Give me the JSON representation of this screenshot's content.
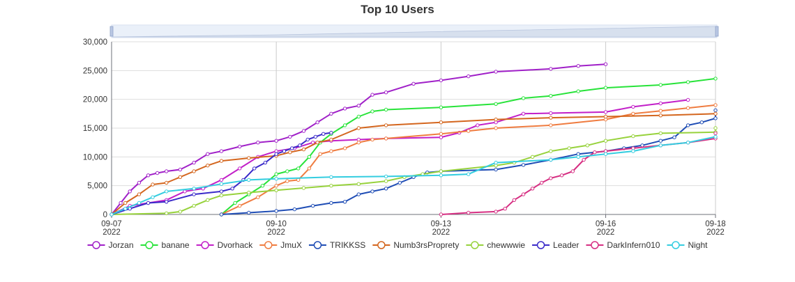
{
  "chart_data": {
    "type": "line",
    "title": "Top 10 Users",
    "x_axis": {
      "type": "date",
      "range": [
        "2022-09-07",
        "2022-09-18"
      ],
      "ticks": [
        {
          "date": "2022-09-07",
          "label": "09-07",
          "sub": "2022"
        },
        {
          "date": "2022-09-10",
          "label": "09-10",
          "sub": "2022"
        },
        {
          "date": "2022-09-13",
          "label": "09-13",
          "sub": "2022"
        },
        {
          "date": "2022-09-16",
          "label": "09-16",
          "sub": "2022"
        },
        {
          "date": "2022-09-18",
          "label": "09-18",
          "sub": "2022"
        }
      ]
    },
    "y_axis": {
      "range": [
        0,
        30000
      ],
      "ticks": [
        0,
        5000,
        10000,
        15000,
        20000,
        25000,
        30000
      ],
      "tick_labels": [
        "0",
        "5,000",
        "10,000",
        "15,000",
        "20,000",
        "25,000",
        "30,000"
      ]
    },
    "grid": true,
    "legend": "bottom",
    "data_zoom": true,
    "series": [
      {
        "name": "Jorzan",
        "color": "#a020c8",
        "points": [
          [
            "2022-09-07",
            0
          ],
          [
            "2022-09-07",
            2000
          ],
          [
            "2022-09-07",
            4000
          ],
          [
            "2022-09-07",
            5500
          ],
          [
            "2022-09-07",
            6800
          ],
          [
            "2022-09-07",
            7200
          ],
          [
            "2022-09-08",
            7500
          ],
          [
            "2022-09-08",
            7800
          ],
          [
            "2022-09-08",
            9000
          ],
          [
            "2022-09-08",
            10500
          ],
          [
            "2022-09-09",
            11000
          ],
          [
            "2022-09-09",
            11800
          ],
          [
            "2022-09-09",
            12500
          ],
          [
            "2022-09-10",
            12800
          ],
          [
            "2022-09-10",
            13500
          ],
          [
            "2022-09-10",
            14500
          ],
          [
            "2022-09-10",
            16000
          ],
          [
            "2022-09-11",
            17500
          ],
          [
            "2022-09-11",
            18400
          ],
          [
            "2022-09-11",
            18900
          ],
          [
            "2022-09-11",
            20800
          ],
          [
            "2022-09-12",
            21200
          ],
          [
            "2022-09-12",
            22700
          ],
          [
            "2022-09-13",
            23300
          ],
          [
            "2022-09-13",
            24000
          ],
          [
            "2022-09-14",
            24800
          ],
          [
            "2022-09-15",
            25300
          ],
          [
            "2022-09-15",
            25800
          ],
          [
            "2022-09-16",
            26100
          ]
        ]
      },
      {
        "name": "banane",
        "color": "#27e339",
        "points": [
          [
            "2022-09-09",
            0
          ],
          [
            "2022-09-09",
            2000
          ],
          [
            "2022-09-09",
            3500
          ],
          [
            "2022-09-09",
            5000
          ],
          [
            "2022-09-10",
            7000
          ],
          [
            "2022-09-10",
            7500
          ],
          [
            "2022-09-10",
            8000
          ],
          [
            "2022-09-10",
            10000
          ],
          [
            "2022-09-10",
            12500
          ],
          [
            "2022-09-11",
            14000
          ],
          [
            "2022-09-11",
            15500
          ],
          [
            "2022-09-11",
            17000
          ],
          [
            "2022-09-11",
            17900
          ],
          [
            "2022-09-12",
            18200
          ],
          [
            "2022-09-13",
            18600
          ],
          [
            "2022-09-14",
            19200
          ],
          [
            "2022-09-14",
            20200
          ],
          [
            "2022-09-15",
            20600
          ],
          [
            "2022-09-15",
            21400
          ],
          [
            "2022-09-16",
            22000
          ],
          [
            "2022-09-17",
            22500
          ],
          [
            "2022-09-17",
            23000
          ],
          [
            "2022-09-18",
            23600
          ]
        ]
      },
      {
        "name": "Dvorhack",
        "color": "#c21fc8",
        "points": [
          [
            "2022-09-07",
            0
          ],
          [
            "2022-09-07",
            1500
          ],
          [
            "2022-09-07",
            2000
          ],
          [
            "2022-09-08",
            2500
          ],
          [
            "2022-09-08",
            4000
          ],
          [
            "2022-09-08",
            4500
          ],
          [
            "2022-09-09",
            6000
          ],
          [
            "2022-09-09",
            8000
          ],
          [
            "2022-09-09",
            10000
          ],
          [
            "2022-09-10",
            11000
          ],
          [
            "2022-09-10",
            11500
          ],
          [
            "2022-09-10",
            12500
          ],
          [
            "2022-09-11",
            12800
          ],
          [
            "2022-09-11",
            13000
          ],
          [
            "2022-09-12",
            13200
          ],
          [
            "2022-09-13",
            13400
          ],
          [
            "2022-09-13",
            14200
          ],
          [
            "2022-09-13",
            15500
          ],
          [
            "2022-09-14",
            16000
          ],
          [
            "2022-09-14",
            17500
          ],
          [
            "2022-09-15",
            17600
          ],
          [
            "2022-09-16",
            17800
          ],
          [
            "2022-09-16",
            18700
          ],
          [
            "2022-09-17",
            19300
          ],
          [
            "2022-09-17",
            19900
          ]
        ]
      },
      {
        "name": "JmuX",
        "color": "#ef7c40",
        "points": [
          [
            "2022-09-09",
            0
          ],
          [
            "2022-09-09",
            1500
          ],
          [
            "2022-09-09",
            3000
          ],
          [
            "2022-09-10",
            5000
          ],
          [
            "2022-09-10",
            5800
          ],
          [
            "2022-09-10",
            6000
          ],
          [
            "2022-09-10",
            8000
          ],
          [
            "2022-09-10",
            10500
          ],
          [
            "2022-09-11",
            11000
          ],
          [
            "2022-09-11",
            11500
          ],
          [
            "2022-09-11",
            12500
          ],
          [
            "2022-09-11",
            13000
          ],
          [
            "2022-09-12",
            13200
          ],
          [
            "2022-09-13",
            14000
          ],
          [
            "2022-09-13",
            14500
          ],
          [
            "2022-09-14",
            15000
          ],
          [
            "2022-09-15",
            15500
          ],
          [
            "2022-09-16",
            16500
          ],
          [
            "2022-09-16",
            17500
          ],
          [
            "2022-09-17",
            18000
          ],
          [
            "2022-09-17",
            18500
          ],
          [
            "2022-09-18",
            19000
          ]
        ]
      },
      {
        "name": "TRIKKSS",
        "color": "#1f4db5",
        "points": [
          [
            "2022-09-09",
            0
          ],
          [
            "2022-09-09",
            300
          ],
          [
            "2022-09-10",
            600
          ],
          [
            "2022-09-10",
            900
          ],
          [
            "2022-09-10",
            1500
          ],
          [
            "2022-09-11",
            2000
          ],
          [
            "2022-09-11",
            2200
          ],
          [
            "2022-09-11",
            3500
          ],
          [
            "2022-09-11",
            4000
          ],
          [
            "2022-09-12",
            4500
          ],
          [
            "2022-09-12",
            5500
          ],
          [
            "2022-09-12",
            6500
          ],
          [
            "2022-09-12",
            7300
          ],
          [
            "2022-09-13",
            7500
          ],
          [
            "2022-09-14",
            7800
          ],
          [
            "2022-09-14",
            8600
          ],
          [
            "2022-09-15",
            9500
          ],
          [
            "2022-09-15",
            10500
          ],
          [
            "2022-09-16",
            11000
          ],
          [
            "2022-09-16",
            11500
          ],
          [
            "2022-09-16",
            12000
          ],
          [
            "2022-09-17",
            12800
          ],
          [
            "2022-09-17",
            13400
          ],
          [
            "2022-09-17",
            15500
          ],
          [
            "2022-09-17",
            16000
          ],
          [
            "2022-09-18",
            16700
          ],
          [
            "2022-09-18",
            18100
          ]
        ]
      },
      {
        "name": "Numb3rsProprety",
        "color": "#d4661e",
        "points": [
          [
            "2022-09-07",
            0
          ],
          [
            "2022-09-07",
            2000
          ],
          [
            "2022-09-07",
            3500
          ],
          [
            "2022-09-07",
            5200
          ],
          [
            "2022-09-08",
            5500
          ],
          [
            "2022-09-08",
            6500
          ],
          [
            "2022-09-08",
            7500
          ],
          [
            "2022-09-08",
            8500
          ],
          [
            "2022-09-09",
            9300
          ],
          [
            "2022-09-09",
            9800
          ],
          [
            "2022-09-10",
            10200
          ],
          [
            "2022-09-10",
            10800
          ],
          [
            "2022-09-10",
            11300
          ],
          [
            "2022-09-10",
            12500
          ],
          [
            "2022-09-11",
            13000
          ],
          [
            "2022-09-11",
            15000
          ],
          [
            "2022-09-12",
            15500
          ],
          [
            "2022-09-13",
            16000
          ],
          [
            "2022-09-14",
            16500
          ],
          [
            "2022-09-15",
            16800
          ],
          [
            "2022-09-16",
            17000
          ],
          [
            "2022-09-17",
            17200
          ],
          [
            "2022-09-18",
            17500
          ]
        ]
      },
      {
        "name": "chewwwie",
        "color": "#97d23c",
        "points": [
          [
            "2022-09-07",
            0
          ],
          [
            "2022-09-08",
            200
          ],
          [
            "2022-09-08",
            500
          ],
          [
            "2022-09-08",
            1500
          ],
          [
            "2022-09-08",
            2500
          ],
          [
            "2022-09-09",
            3300
          ],
          [
            "2022-09-09",
            3800
          ],
          [
            "2022-09-10",
            4200
          ],
          [
            "2022-09-10",
            4600
          ],
          [
            "2022-09-11",
            5000
          ],
          [
            "2022-09-11",
            5300
          ],
          [
            "2022-09-12",
            5800
          ],
          [
            "2022-09-12",
            6500
          ],
          [
            "2022-09-12",
            7000
          ],
          [
            "2022-09-13",
            7500
          ],
          [
            "2022-09-14",
            8500
          ],
          [
            "2022-09-14",
            9000
          ],
          [
            "2022-09-14",
            10000
          ],
          [
            "2022-09-15",
            11000
          ],
          [
            "2022-09-15",
            11500
          ],
          [
            "2022-09-15",
            12000
          ],
          [
            "2022-09-16",
            12800
          ],
          [
            "2022-09-16",
            13600
          ],
          [
            "2022-09-17",
            14100
          ],
          [
            "2022-09-18",
            14300
          ],
          [
            "2022-09-18",
            15000
          ]
        ]
      },
      {
        "name": "Leader",
        "color": "#3a2ac9",
        "points": [
          [
            "2022-09-07",
            0
          ],
          [
            "2022-09-07",
            1000
          ],
          [
            "2022-09-07",
            2000
          ],
          [
            "2022-09-08",
            2200
          ],
          [
            "2022-09-08",
            3500
          ],
          [
            "2022-09-09",
            4000
          ],
          [
            "2022-09-09",
            4500
          ],
          [
            "2022-09-09",
            6000
          ],
          [
            "2022-09-09",
            8000
          ],
          [
            "2022-09-09",
            9000
          ],
          [
            "2022-09-10",
            10500
          ],
          [
            "2022-09-10",
            11000
          ],
          [
            "2022-09-10",
            11500
          ],
          [
            "2022-09-10",
            12000
          ],
          [
            "2022-09-10",
            13000
          ],
          [
            "2022-09-10",
            13500
          ],
          [
            "2022-09-10",
            14000
          ],
          [
            "2022-09-11",
            14200
          ]
        ]
      },
      {
        "name": "DarkInfern010",
        "color": "#d62e82",
        "points": [
          [
            "2022-09-13",
            0
          ],
          [
            "2022-09-13",
            300
          ],
          [
            "2022-09-14",
            500
          ],
          [
            "2022-09-14",
            1000
          ],
          [
            "2022-09-14",
            2500
          ],
          [
            "2022-09-14",
            3500
          ],
          [
            "2022-09-14",
            4500
          ],
          [
            "2022-09-14",
            5500
          ],
          [
            "2022-09-15",
            6300
          ],
          [
            "2022-09-15",
            6800
          ],
          [
            "2022-09-15",
            7500
          ],
          [
            "2022-09-15",
            9500
          ],
          [
            "2022-09-15",
            10800
          ],
          [
            "2022-09-16",
            11000
          ],
          [
            "2022-09-16",
            11500
          ],
          [
            "2022-09-17",
            12000
          ],
          [
            "2022-09-17",
            12500
          ],
          [
            "2022-09-18",
            13200
          ],
          [
            "2022-09-18",
            14100
          ]
        ]
      },
      {
        "name": "Night",
        "color": "#34cde0",
        "points": [
          [
            "2022-09-07",
            0
          ],
          [
            "2022-09-07",
            1000
          ],
          [
            "2022-09-07",
            2000
          ],
          [
            "2022-09-07",
            3000
          ],
          [
            "2022-09-08",
            4000
          ],
          [
            "2022-09-08",
            4500
          ],
          [
            "2022-09-09",
            5300
          ],
          [
            "2022-09-09",
            6000
          ],
          [
            "2022-09-10",
            6200
          ],
          [
            "2022-09-11",
            6500
          ],
          [
            "2022-09-12",
            6600
          ],
          [
            "2022-09-13",
            6800
          ],
          [
            "2022-09-13",
            7000
          ],
          [
            "2022-09-14",
            9000
          ],
          [
            "2022-09-15",
            9500
          ],
          [
            "2022-09-15",
            10000
          ],
          [
            "2022-09-16",
            10500
          ],
          [
            "2022-09-16",
            11000
          ],
          [
            "2022-09-17",
            12000
          ],
          [
            "2022-09-17",
            12500
          ],
          [
            "2022-09-18",
            13500
          ]
        ]
      }
    ]
  }
}
